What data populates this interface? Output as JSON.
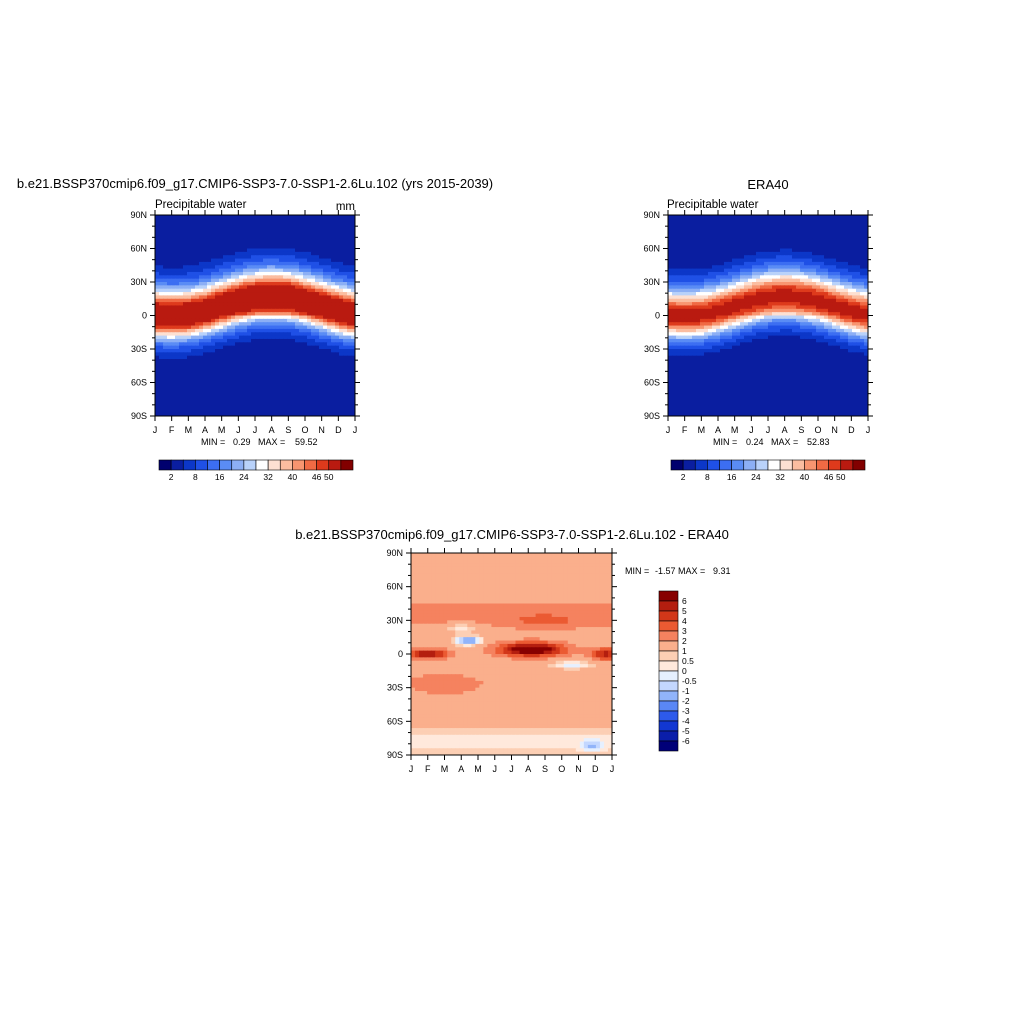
{
  "chart_data": [
    {
      "type": "heatmap",
      "id": "model",
      "title": "b.e21.BSSP370cmip6.f09_g17.CMIP6-SSP3-7.0-SSP1-2.6Lu.102 (yrs 2015-2039)",
      "left_label": "Precipitable water",
      "units": "mm",
      "x_ticks": [
        "J",
        "F",
        "M",
        "A",
        "M",
        "J",
        "J",
        "A",
        "S",
        "O",
        "N",
        "D",
        "J"
      ],
      "y_ticks": [
        "90N",
        "60N",
        "30N",
        "0",
        "30S",
        "60S",
        "90S"
      ],
      "ylim": [
        -90,
        90
      ],
      "min_label": "MIN =",
      "min_value": "0.29",
      "max_label": "MAX =",
      "max_value": "59.52",
      "field": {
        "peak": 57,
        "itcz_amp": 9,
        "itcz_phase": 7.2,
        "sigma": 24,
        "background": 3,
        "asym_amp": 0.035
      },
      "levels": [
        2,
        5,
        8,
        12,
        16,
        20,
        24,
        28,
        32,
        36,
        40,
        43,
        46,
        50
      ],
      "colorbar_labels": [
        "2",
        "8",
        "16",
        "24",
        "32",
        "40",
        "46",
        "50"
      ]
    },
    {
      "type": "heatmap",
      "id": "obs",
      "title": "ERA40",
      "left_label": "Precipitable water",
      "units": "",
      "x_ticks": [
        "J",
        "F",
        "M",
        "A",
        "M",
        "J",
        "J",
        "A",
        "S",
        "O",
        "N",
        "D",
        "J"
      ],
      "y_ticks": [
        "90N",
        "60N",
        "30N",
        "0",
        "30S",
        "60S",
        "90S"
      ],
      "ylim": [
        -90,
        90
      ],
      "min_label": "MIN =",
      "min_value": "0.24",
      "max_label": "MAX =",
      "max_value": "52.83",
      "field": {
        "peak": 50,
        "itcz_amp": 9,
        "itcz_phase": 7.2,
        "sigma": 24,
        "background": 2.5,
        "asym_amp": 0.035
      },
      "levels": [
        2,
        5,
        8,
        12,
        16,
        20,
        24,
        28,
        32,
        36,
        40,
        43,
        46,
        50
      ],
      "colorbar_labels": [
        "2",
        "8",
        "16",
        "24",
        "32",
        "40",
        "46",
        "50"
      ]
    },
    {
      "type": "heatmap",
      "id": "diff",
      "title": "b.e21.BSSP370cmip6.f09_g17.CMIP6-SSP3-7.0-SSP1-2.6Lu.102 - ERA40",
      "x_ticks": [
        "J",
        "F",
        "M",
        "A",
        "M",
        "J",
        "J",
        "A",
        "S",
        "O",
        "N",
        "D",
        "J"
      ],
      "y_ticks": [
        "90N",
        "60N",
        "30N",
        "0",
        "30S",
        "60S",
        "90S"
      ],
      "ylim": [
        -90,
        90
      ],
      "min_label": "MIN =",
      "min_value": "-1.57",
      "max_label": "MAX =",
      "max_value": "9.31",
      "levels": [
        -6,
        -5,
        -4,
        -3,
        -2,
        -1,
        -0.5,
        0,
        0.5,
        1,
        2,
        3,
        4,
        5,
        6
      ],
      "colorbar_labels": [
        "6",
        "5",
        "4",
        "3",
        "2",
        "1",
        "0.5",
        "0",
        "-0.5",
        "-1",
        "-2",
        "-3",
        "-4",
        "-5",
        "-6"
      ]
    }
  ],
  "colors": {
    "abs_palette": [
      "#00006e",
      "#0a1ea0",
      "#0c37c8",
      "#1f50e6",
      "#3c6ef2",
      "#5a8cf5",
      "#8caff5",
      "#b9d2fa",
      "#ffffff",
      "#fde0d2",
      "#fbbda0",
      "#f89570",
      "#f06a44",
      "#de3a1c",
      "#b91a10",
      "#820000"
    ],
    "diff_palette": [
      "#000078",
      "#0a1eaa",
      "#1237d2",
      "#2d5aeb",
      "#5a87f5",
      "#91b4fa",
      "#c3d7ff",
      "#e6f0ff",
      "#ffe9dc",
      "#fccfb4",
      "#faaf8c",
      "#f5825f",
      "#eb5a32",
      "#d23719",
      "#b41e0f",
      "#870000"
    ]
  }
}
